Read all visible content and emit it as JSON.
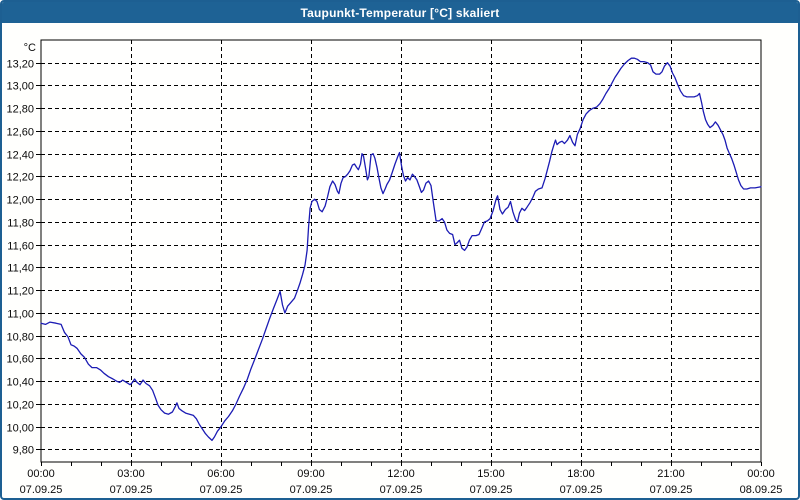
{
  "window": {
    "title": "Taupunkt-Temperatur [°C] skaliert"
  },
  "colors": {
    "titlebar_bg": "#1e6295",
    "titlebar_text": "#ffffff",
    "frame_border": "#1d5f92",
    "plot_bg": "#fffffe",
    "plot_border": "#000000",
    "grid": "#000000",
    "line": "#1c1cb4",
    "label_text": "#0a0a0a"
  },
  "chart_data": {
    "type": "line",
    "title": "Taupunkt-Temperatur [°C] skaliert",
    "ylabel": "°C",
    "xlabel": "",
    "grid": "dashed",
    "legend_position": "none",
    "ylim": [
      9.69,
      13.4
    ],
    "xlim_hours": [
      0,
      24
    ],
    "y_ticks": [
      13.2,
      13.0,
      12.8,
      12.6,
      12.4,
      12.2,
      12.0,
      11.8,
      11.6,
      11.4,
      11.2,
      11.0,
      10.8,
      10.6,
      10.4,
      10.2,
      10.0,
      9.8
    ],
    "y_tick_labels": [
      "13,20",
      "13,00",
      "12,80",
      "12,60",
      "12,40",
      "12,20",
      "12,00",
      "11,80",
      "11,60",
      "11,40",
      "11,20",
      "11,00",
      "10,80",
      "10,60",
      "10,40",
      "10,20",
      "10,00",
      "9,80"
    ],
    "x_major_gridline_hours": [
      3,
      6,
      9,
      12,
      15,
      18,
      21
    ],
    "x_minor_tick_every_hours": 1,
    "x_tick_labels": [
      {
        "t": 0,
        "time": "00:00",
        "date": "07.09.25"
      },
      {
        "t": 3,
        "time": "03:00",
        "date": "07.09.25"
      },
      {
        "t": 6,
        "time": "06:00",
        "date": "07.09.25"
      },
      {
        "t": 9,
        "time": "09:00",
        "date": "07.09.25"
      },
      {
        "t": 12,
        "time": "12:00",
        "date": "07.09.25"
      },
      {
        "t": 15,
        "time": "15:00",
        "date": "07.09.25"
      },
      {
        "t": 18,
        "time": "18:00",
        "date": "07.09.25"
      },
      {
        "t": 21,
        "time": "21:00",
        "date": "07.09.25"
      },
      {
        "t": 24,
        "time": "00:00",
        "date": "08.09.25"
      }
    ],
    "series": [
      {
        "name": "Taupunkt-Temperatur",
        "color": "#1c1cb4",
        "points": [
          [
            0.0,
            10.91
          ],
          [
            0.15,
            10.9
          ],
          [
            0.3,
            10.92
          ],
          [
            0.5,
            10.91
          ],
          [
            0.67,
            10.9
          ],
          [
            0.78,
            10.83
          ],
          [
            0.9,
            10.79
          ],
          [
            1.0,
            10.72
          ],
          [
            1.1,
            10.71
          ],
          [
            1.2,
            10.69
          ],
          [
            1.33,
            10.64
          ],
          [
            1.45,
            10.61
          ],
          [
            1.58,
            10.55
          ],
          [
            1.7,
            10.52
          ],
          [
            1.85,
            10.52
          ],
          [
            1.98,
            10.5
          ],
          [
            2.1,
            10.47
          ],
          [
            2.25,
            10.44
          ],
          [
            2.4,
            10.42
          ],
          [
            2.52,
            10.4
          ],
          [
            2.62,
            10.39
          ],
          [
            2.72,
            10.41
          ],
          [
            2.85,
            10.39
          ],
          [
            2.97,
            10.37
          ],
          [
            3.05,
            10.39
          ],
          [
            3.12,
            10.42
          ],
          [
            3.2,
            10.39
          ],
          [
            3.3,
            10.37
          ],
          [
            3.4,
            10.41
          ],
          [
            3.5,
            10.38
          ],
          [
            3.62,
            10.36
          ],
          [
            3.72,
            10.32
          ],
          [
            3.82,
            10.25
          ],
          [
            3.9,
            10.19
          ],
          [
            4.0,
            10.15
          ],
          [
            4.12,
            10.12
          ],
          [
            4.25,
            10.11
          ],
          [
            4.38,
            10.13
          ],
          [
            4.48,
            10.18
          ],
          [
            4.53,
            10.21
          ],
          [
            4.6,
            10.16
          ],
          [
            4.7,
            10.14
          ],
          [
            4.82,
            10.12
          ],
          [
            4.95,
            10.11
          ],
          [
            5.08,
            10.1
          ],
          [
            5.18,
            10.07
          ],
          [
            5.28,
            10.02
          ],
          [
            5.38,
            9.98
          ],
          [
            5.48,
            9.94
          ],
          [
            5.58,
            9.91
          ],
          [
            5.7,
            9.88
          ],
          [
            5.78,
            9.91
          ],
          [
            5.88,
            9.96
          ],
          [
            6.0,
            10.0
          ],
          [
            6.12,
            10.05
          ],
          [
            6.25,
            10.09
          ],
          [
            6.38,
            10.14
          ],
          [
            6.5,
            10.2
          ],
          [
            6.62,
            10.27
          ],
          [
            6.75,
            10.34
          ],
          [
            6.88,
            10.42
          ],
          [
            7.0,
            10.51
          ],
          [
            7.12,
            10.59
          ],
          [
            7.25,
            10.68
          ],
          [
            7.38,
            10.77
          ],
          [
            7.5,
            10.86
          ],
          [
            7.62,
            10.95
          ],
          [
            7.75,
            11.04
          ],
          [
            7.87,
            11.12
          ],
          [
            7.97,
            11.19
          ],
          [
            8.05,
            11.07
          ],
          [
            8.13,
            11.0
          ],
          [
            8.22,
            11.06
          ],
          [
            8.32,
            11.09
          ],
          [
            8.45,
            11.13
          ],
          [
            8.55,
            11.2
          ],
          [
            8.63,
            11.26
          ],
          [
            8.72,
            11.34
          ],
          [
            8.8,
            11.42
          ],
          [
            8.87,
            11.55
          ],
          [
            8.92,
            11.76
          ],
          [
            8.97,
            11.92
          ],
          [
            9.03,
            11.98
          ],
          [
            9.12,
            12.0
          ],
          [
            9.2,
            11.98
          ],
          [
            9.28,
            11.91
          ],
          [
            9.37,
            11.89
          ],
          [
            9.47,
            11.94
          ],
          [
            9.55,
            12.02
          ],
          [
            9.63,
            12.11
          ],
          [
            9.72,
            12.16
          ],
          [
            9.8,
            12.13
          ],
          [
            9.88,
            12.07
          ],
          [
            9.93,
            12.05
          ],
          [
            10.0,
            12.14
          ],
          [
            10.07,
            12.19
          ],
          [
            10.15,
            12.2
          ],
          [
            10.22,
            12.22
          ],
          [
            10.3,
            12.25
          ],
          [
            10.38,
            12.3
          ],
          [
            10.45,
            12.31
          ],
          [
            10.52,
            12.28
          ],
          [
            10.58,
            12.26
          ],
          [
            10.65,
            12.31
          ],
          [
            10.7,
            12.4
          ],
          [
            10.75,
            12.38
          ],
          [
            10.82,
            12.27
          ],
          [
            10.88,
            12.17
          ],
          [
            10.93,
            12.2
          ],
          [
            11.0,
            12.39
          ],
          [
            11.07,
            12.4
          ],
          [
            11.13,
            12.36
          ],
          [
            11.2,
            12.28
          ],
          [
            11.27,
            12.18
          ],
          [
            11.33,
            12.1
          ],
          [
            11.4,
            12.05
          ],
          [
            11.47,
            12.09
          ],
          [
            11.53,
            12.13
          ],
          [
            11.62,
            12.17
          ],
          [
            11.7,
            12.23
          ],
          [
            11.8,
            12.31
          ],
          [
            11.9,
            12.38
          ],
          [
            11.95,
            12.41
          ],
          [
            12.02,
            12.29
          ],
          [
            12.08,
            12.21
          ],
          [
            12.15,
            12.16
          ],
          [
            12.22,
            12.19
          ],
          [
            12.3,
            12.17
          ],
          [
            12.38,
            12.22
          ],
          [
            12.45,
            12.2
          ],
          [
            12.53,
            12.17
          ],
          [
            12.6,
            12.12
          ],
          [
            12.68,
            12.06
          ],
          [
            12.75,
            12.08
          ],
          [
            12.83,
            12.14
          ],
          [
            12.92,
            12.16
          ],
          [
            13.0,
            12.12
          ],
          [
            13.08,
            11.97
          ],
          [
            13.17,
            11.81
          ],
          [
            13.27,
            11.81
          ],
          [
            13.37,
            11.83
          ],
          [
            13.45,
            11.8
          ],
          [
            13.53,
            11.73
          ],
          [
            13.62,
            11.7
          ],
          [
            13.72,
            11.69
          ],
          [
            13.8,
            11.6
          ],
          [
            13.88,
            11.62
          ],
          [
            13.95,
            11.64
          ],
          [
            14.03,
            11.57
          ],
          [
            14.12,
            11.55
          ],
          [
            14.2,
            11.58
          ],
          [
            14.28,
            11.64
          ],
          [
            14.37,
            11.68
          ],
          [
            14.5,
            11.68
          ],
          [
            14.6,
            11.69
          ],
          [
            14.7,
            11.75
          ],
          [
            14.78,
            11.8
          ],
          [
            14.88,
            11.81
          ],
          [
            14.97,
            11.83
          ],
          [
            15.07,
            11.9
          ],
          [
            15.17,
            12.0
          ],
          [
            15.22,
            12.03
          ],
          [
            15.3,
            11.91
          ],
          [
            15.38,
            11.87
          ],
          [
            15.48,
            11.91
          ],
          [
            15.57,
            11.93
          ],
          [
            15.65,
            11.98
          ],
          [
            15.73,
            11.89
          ],
          [
            15.82,
            11.82
          ],
          [
            15.88,
            11.8
          ],
          [
            15.95,
            11.88
          ],
          [
            16.03,
            11.92
          ],
          [
            16.12,
            11.9
          ],
          [
            16.2,
            11.93
          ],
          [
            16.3,
            11.97
          ],
          [
            16.4,
            12.02
          ],
          [
            16.48,
            12.07
          ],
          [
            16.58,
            12.09
          ],
          [
            16.7,
            12.1
          ],
          [
            16.8,
            12.18
          ],
          [
            16.88,
            12.26
          ],
          [
            16.95,
            12.33
          ],
          [
            17.03,
            12.42
          ],
          [
            17.1,
            12.48
          ],
          [
            17.15,
            12.52
          ],
          [
            17.2,
            12.48
          ],
          [
            17.28,
            12.5
          ],
          [
            17.37,
            12.51
          ],
          [
            17.45,
            12.49
          ],
          [
            17.55,
            12.52
          ],
          [
            17.63,
            12.56
          ],
          [
            17.72,
            12.5
          ],
          [
            17.8,
            12.47
          ],
          [
            17.88,
            12.57
          ],
          [
            17.97,
            12.62
          ],
          [
            18.07,
            12.7
          ],
          [
            18.17,
            12.75
          ],
          [
            18.28,
            12.78
          ],
          [
            18.4,
            12.8
          ],
          [
            18.52,
            12.81
          ],
          [
            18.63,
            12.84
          ],
          [
            18.73,
            12.88
          ],
          [
            18.83,
            12.93
          ],
          [
            18.93,
            12.97
          ],
          [
            19.03,
            13.02
          ],
          [
            19.13,
            13.07
          ],
          [
            19.23,
            13.11
          ],
          [
            19.33,
            13.15
          ],
          [
            19.45,
            13.19
          ],
          [
            19.57,
            13.22
          ],
          [
            19.68,
            13.24
          ],
          [
            19.78,
            13.24
          ],
          [
            19.88,
            13.23
          ],
          [
            19.98,
            13.21
          ],
          [
            20.1,
            13.21
          ],
          [
            20.22,
            13.2
          ],
          [
            20.32,
            13.18
          ],
          [
            20.4,
            13.12
          ],
          [
            20.5,
            13.1
          ],
          [
            20.62,
            13.1
          ],
          [
            20.7,
            13.12
          ],
          [
            20.78,
            13.17
          ],
          [
            20.88,
            13.2
          ],
          [
            20.97,
            13.17
          ],
          [
            21.05,
            13.11
          ],
          [
            21.13,
            13.07
          ],
          [
            21.22,
            13.01
          ],
          [
            21.32,
            12.95
          ],
          [
            21.42,
            12.91
          ],
          [
            21.53,
            12.9
          ],
          [
            21.65,
            12.9
          ],
          [
            21.77,
            12.9
          ],
          [
            21.88,
            12.91
          ],
          [
            21.95,
            12.93
          ],
          [
            22.02,
            12.85
          ],
          [
            22.08,
            12.77
          ],
          [
            22.15,
            12.7
          ],
          [
            22.22,
            12.66
          ],
          [
            22.3,
            12.63
          ],
          [
            22.4,
            12.65
          ],
          [
            22.48,
            12.68
          ],
          [
            22.57,
            12.65
          ],
          [
            22.65,
            12.61
          ],
          [
            22.73,
            12.57
          ],
          [
            22.8,
            12.52
          ],
          [
            22.87,
            12.45
          ],
          [
            22.95,
            12.4
          ],
          [
            23.02,
            12.36
          ],
          [
            23.1,
            12.3
          ],
          [
            23.17,
            12.24
          ],
          [
            23.25,
            12.17
          ],
          [
            23.33,
            12.12
          ],
          [
            23.42,
            12.09
          ],
          [
            23.53,
            12.09
          ],
          [
            23.65,
            12.1
          ],
          [
            23.8,
            12.1
          ],
          [
            24.0,
            12.11
          ]
        ]
      }
    ]
  }
}
